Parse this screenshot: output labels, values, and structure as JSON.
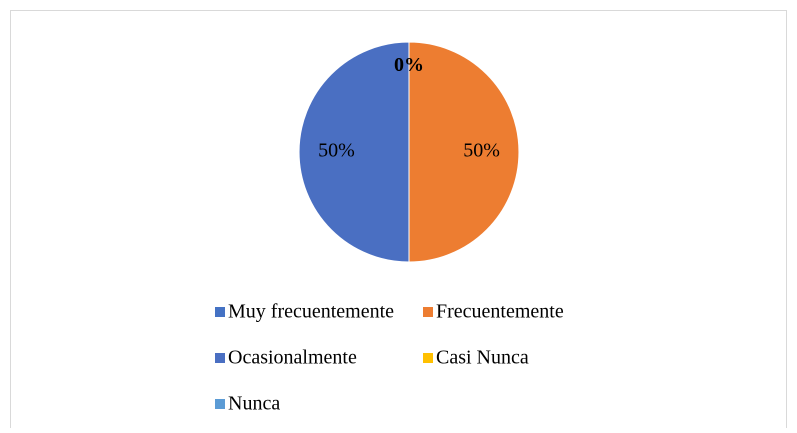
{
  "chart_data": {
    "type": "pie",
    "categories": [
      "Muy frecuentemente",
      "Frecuentemente",
      "Ocasionalmente",
      "Casi Nunca",
      "Nunca"
    ],
    "values": [
      0,
      50,
      50,
      0,
      0
    ],
    "value_labels": [
      "0%",
      "50%",
      "50%",
      null,
      null
    ],
    "colors": [
      "#4472c4",
      "#ed7d31",
      "#4a6fc2",
      "#ffc000",
      "#5b9bd5"
    ],
    "legend": "bottom"
  }
}
